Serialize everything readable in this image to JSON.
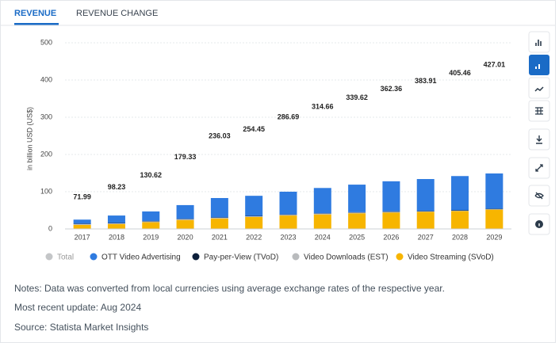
{
  "tabs": [
    "REVENUE",
    "REVENUE CHANGE"
  ],
  "chart_data": {
    "type": "stacked_bar",
    "ylabel": "in billion USD (US$)",
    "categories": [
      "2017",
      "2018",
      "2019",
      "2020",
      "2021",
      "2022",
      "2023",
      "2024",
      "2025",
      "2026",
      "2027",
      "2028",
      "2029"
    ],
    "total": {
      "name": "Total",
      "color": "#c4c6c8",
      "values": [
        71.99,
        98.23,
        130.62,
        179.33,
        236.03,
        254.45,
        286.69,
        314.66,
        339.62,
        362.36,
        383.91,
        405.46,
        427.01
      ]
    },
    "series": [
      {
        "name": "OTT Video Advertising",
        "color": "#2f7be0",
        "values": [
          11,
          20,
          26,
          37,
          52,
          54,
          61,
          68,
          74,
          81,
          86,
          92,
          95
        ]
      },
      {
        "name": "Pay-per-View (TVoD)",
        "color": "#0d1f3a",
        "values": [
          1,
          1,
          1,
          1,
          1,
          1,
          1,
          1,
          1,
          1,
          1,
          1,
          1
        ]
      },
      {
        "name": "Video Downloads (EST)",
        "color": "#b9bbbd",
        "values": [
          2,
          2,
          2,
          2,
          2,
          2,
          2,
          2,
          2,
          2,
          1,
          1,
          1
        ]
      },
      {
        "name": "Video Streaming (SVoD)",
        "color": "#f7b500",
        "values": [
          11,
          13,
          18,
          24,
          28,
          32,
          36,
          39,
          42,
          44,
          46,
          48,
          52
        ]
      }
    ],
    "ylim": [
      0,
      500
    ],
    "yticks": [
      0,
      100,
      200,
      300,
      400,
      500
    ],
    "grid": true
  },
  "notes": [
    "Notes: Data was converted from local currencies using average exchange rates of the respective year.",
    "Most recent update: Aug 2024",
    "Source: Statista Market Insights"
  ]
}
